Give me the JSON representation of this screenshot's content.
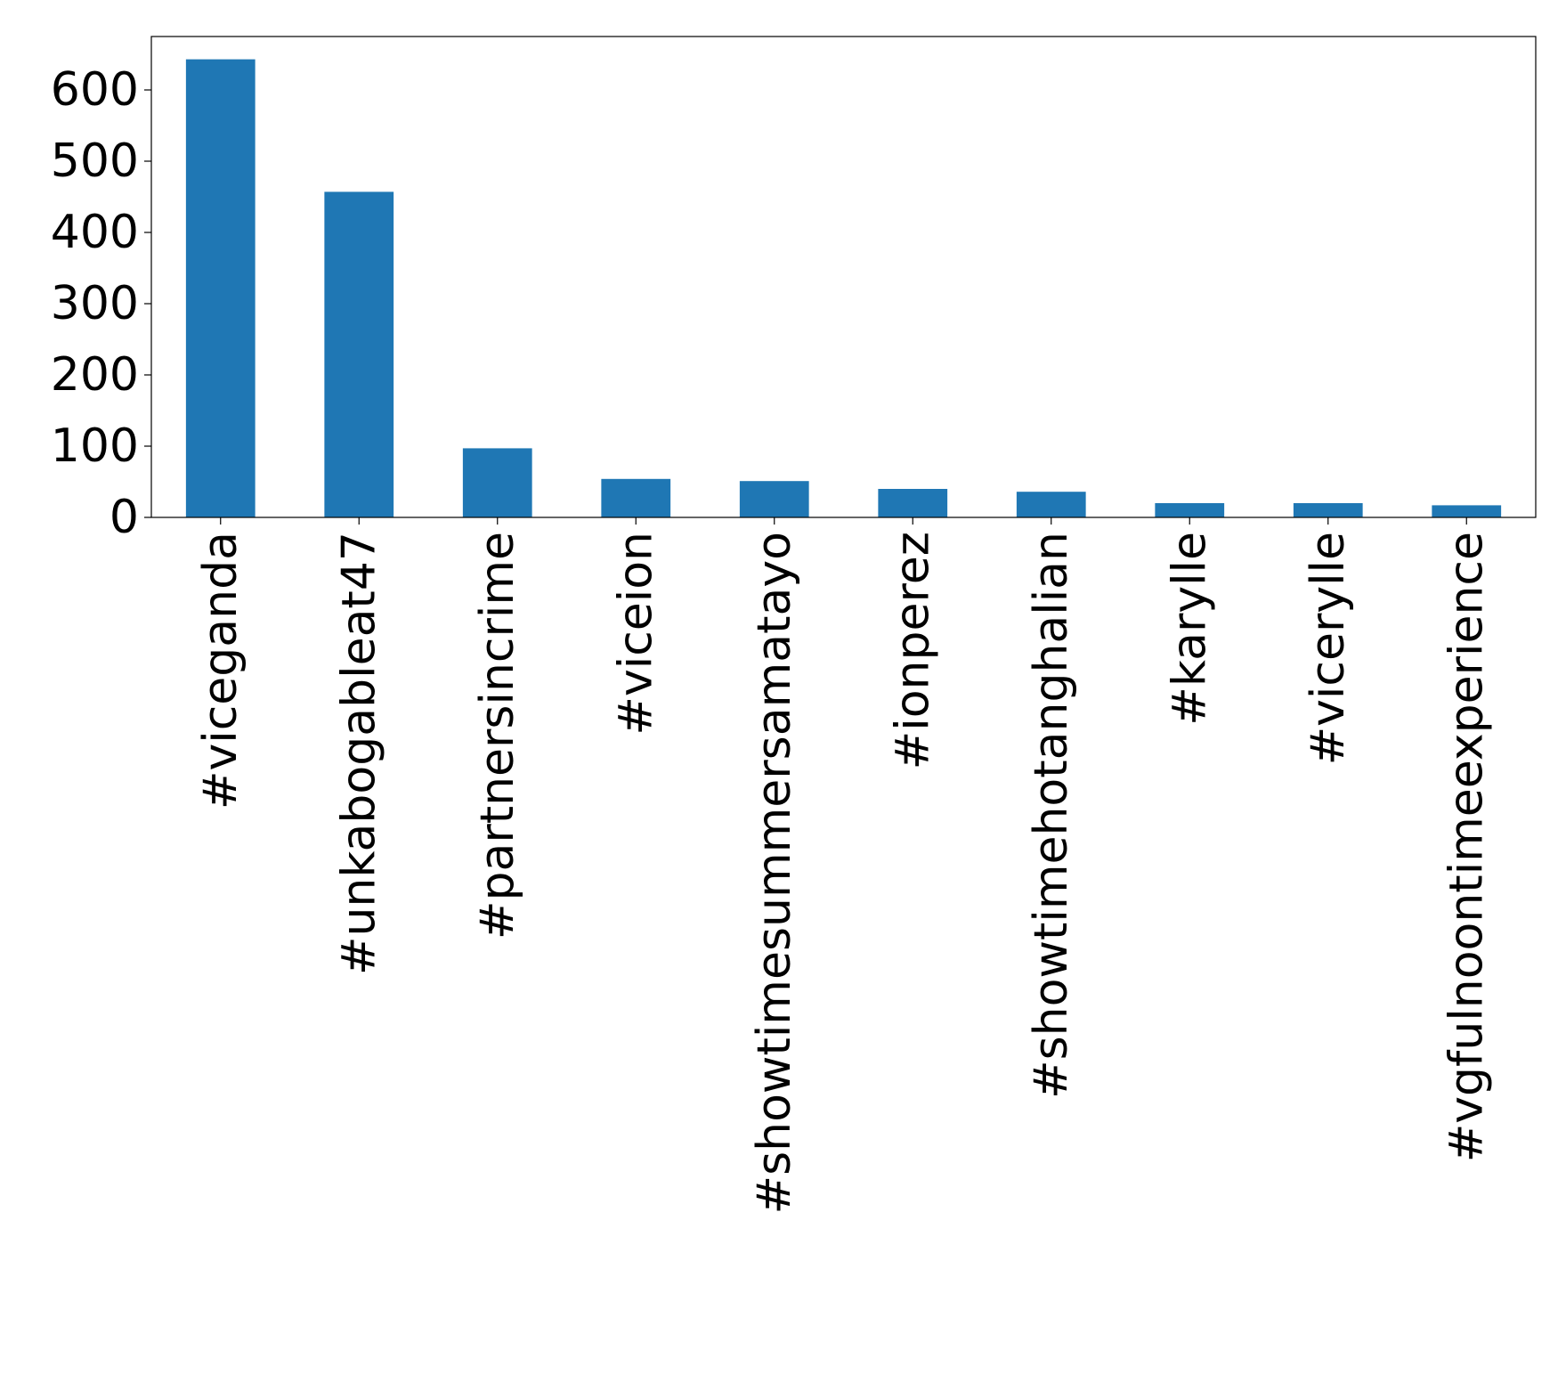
{
  "chart_data": {
    "type": "bar",
    "title": "",
    "xlabel": "",
    "ylabel": "",
    "categories": [
      "#viceganda",
      "#unkabogableat47",
      "#partnersincrime",
      "#viceion",
      "#showtimesummersamatayo",
      "#ionperez",
      "#showtimehotanghalian",
      "#karylle",
      "#vicerylle",
      "#vgfulnoontimeexperience"
    ],
    "values": [
      643,
      457,
      97,
      54,
      51,
      40,
      36,
      20,
      20,
      17
    ],
    "ylim": [
      0,
      675
    ],
    "yticks": [
      0,
      100,
      200,
      300,
      400,
      500,
      600
    ],
    "ytick_labels": [
      "0",
      "100",
      "200",
      "300",
      "400",
      "500",
      "600"
    ],
    "bar_color": "#1f77b4",
    "grid": false,
    "legend": "none"
  }
}
